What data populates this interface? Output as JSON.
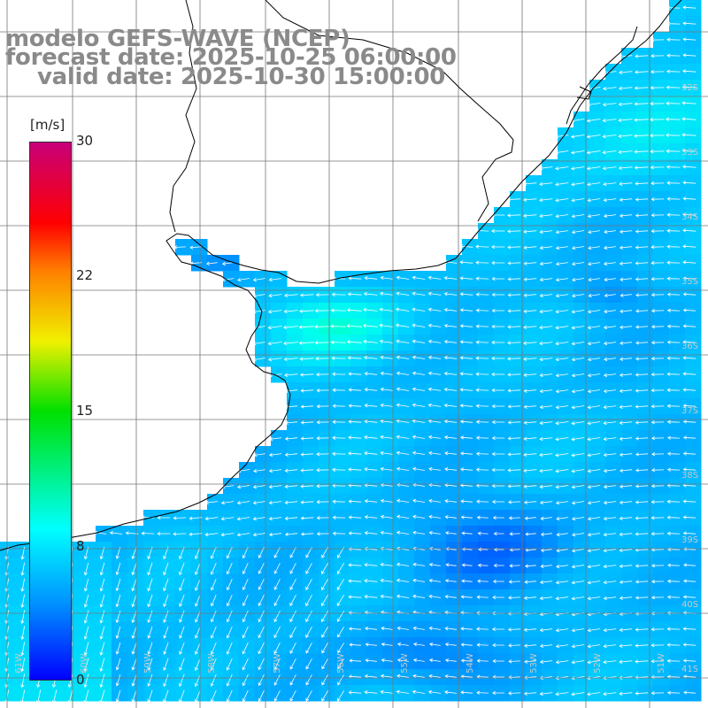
{
  "header": {
    "model": "modelo GEFS-WAVE (NCEP)",
    "forecast": "forecast date: 2025-10-25 06:00:00",
    "valid": "valid date: 2025-10-30 15:00:00"
  },
  "colorbar": {
    "unit": "[m/s]",
    "ticks": [
      {
        "label": "30",
        "value": 30
      },
      {
        "label": "22",
        "value": 22
      },
      {
        "label": "15",
        "value": 15
      },
      {
        "label": "8",
        "value": 8
      },
      {
        "label": "0",
        "value": 0
      }
    ],
    "colors": [
      "#0000ff",
      "#0090ff",
      "#00ffff",
      "#00e000",
      "#f0f000",
      "#ff8000",
      "#ff0000",
      "#c8007a"
    ]
  },
  "map": {
    "lon_range": [
      -62,
      -51
    ],
    "lat_range": [
      -41.7,
      -30.3
    ],
    "lat_labels": [
      "32S",
      "33S",
      "34S",
      "35S",
      "36S",
      "37S",
      "38S",
      "39S",
      "40S",
      "41S"
    ],
    "lon_labels": [
      "61W",
      "60W",
      "59W",
      "58W",
      "57W",
      "56W",
      "55W",
      "54W",
      "53W",
      "52W",
      "51W"
    ],
    "land_color": "#ffffff",
    "grid_color": "#777777",
    "coast_color": "#000000",
    "arrow_color": "#ffffff"
  }
}
